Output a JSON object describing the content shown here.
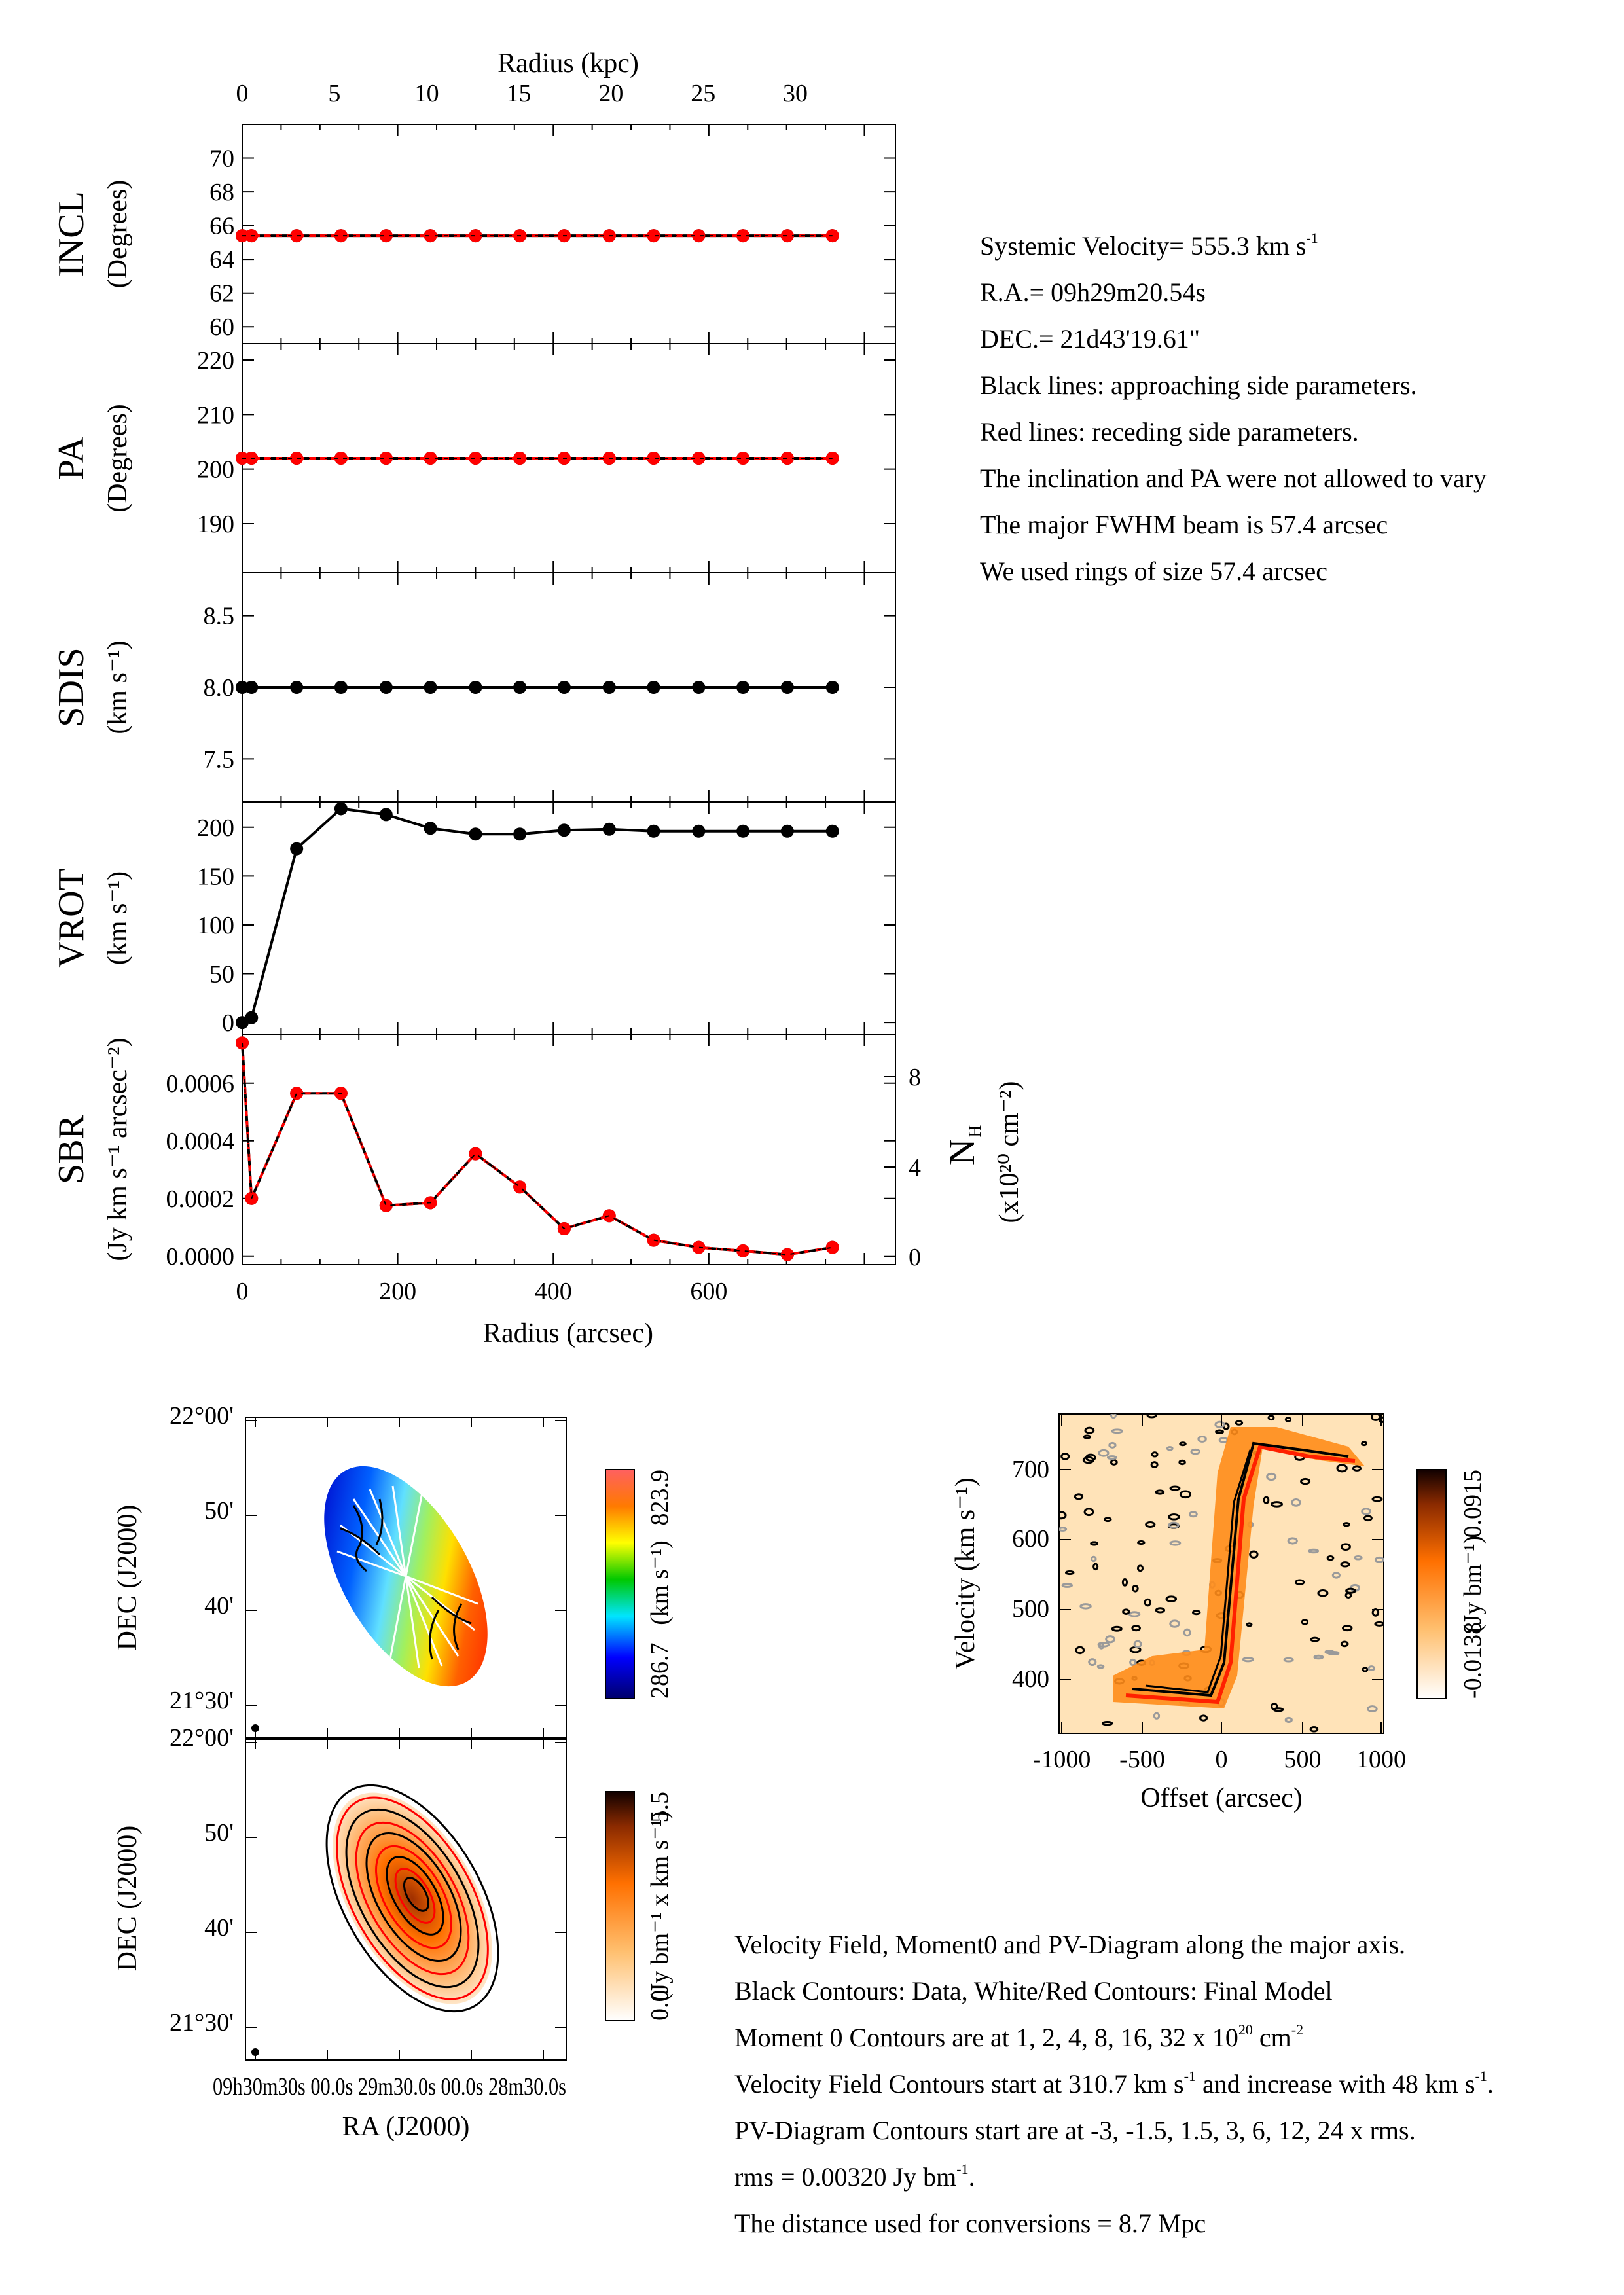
{
  "chart_data": [
    {
      "type": "line",
      "name": "INCL",
      "ylabel": "INCL",
      "yunit": "(Degrees)",
      "ylim": [
        59,
        72
      ],
      "yticks": [
        "60",
        "62",
        "64",
        "66",
        "68",
        "70"
      ],
      "x": [
        0,
        12,
        70,
        127,
        185,
        242,
        300,
        357,
        414,
        472,
        529,
        587,
        644,
        701,
        759
      ],
      "series": [
        {
          "name": "approaching",
          "color": "#000000",
          "values": [
            65.4,
            65.4,
            65.4,
            65.4,
            65.4,
            65.4,
            65.4,
            65.4,
            65.4,
            65.4,
            65.4,
            65.4,
            65.4,
            65.4,
            65.4
          ]
        },
        {
          "name": "receding",
          "color": "#ff0000",
          "values": [
            65.4,
            65.4,
            65.4,
            65.4,
            65.4,
            65.4,
            65.4,
            65.4,
            65.4,
            65.4,
            65.4,
            65.4,
            65.4,
            65.4,
            65.4
          ]
        }
      ]
    },
    {
      "type": "line",
      "name": "PA",
      "ylabel": "PA",
      "yunit": "(Degrees)",
      "ylim": [
        181,
        223
      ],
      "yticks": [
        "190",
        "200",
        "210",
        "220"
      ],
      "x": [
        0,
        12,
        70,
        127,
        185,
        242,
        300,
        357,
        414,
        472,
        529,
        587,
        644,
        701,
        759
      ],
      "series": [
        {
          "name": "approaching",
          "color": "#000000",
          "values": [
            202,
            202,
            202,
            202,
            202,
            202,
            202,
            202,
            202,
            202,
            202,
            202,
            202,
            202,
            202
          ]
        },
        {
          "name": "receding",
          "color": "#ff0000",
          "values": [
            202,
            202,
            202,
            202,
            202,
            202,
            202,
            202,
            202,
            202,
            202,
            202,
            202,
            202,
            202
          ]
        }
      ]
    },
    {
      "type": "line",
      "name": "SDIS",
      "ylabel": "SDIS",
      "yunit": "(km s⁻¹)",
      "ylim": [
        7.2,
        8.8
      ],
      "yticks": [
        "7.5",
        "8.0",
        "8.5"
      ],
      "x": [
        0,
        12,
        70,
        127,
        185,
        242,
        300,
        357,
        414,
        472,
        529,
        587,
        644,
        701,
        759
      ],
      "series": [
        {
          "name": "approaching",
          "color": "#000000",
          "values": [
            8.0,
            8.0,
            8.0,
            8.0,
            8.0,
            8.0,
            8.0,
            8.0,
            8.0,
            8.0,
            8.0,
            8.0,
            8.0,
            8.0,
            8.0
          ]
        }
      ]
    },
    {
      "type": "line",
      "name": "VROT",
      "ylabel": "VROT",
      "yunit": "(km s⁻¹)",
      "ylim": [
        -12,
        226
      ],
      "yticks": [
        "0",
        "50",
        "100",
        "150",
        "200"
      ],
      "x": [
        0,
        12,
        70,
        127,
        185,
        242,
        300,
        357,
        414,
        472,
        529,
        587,
        644,
        701,
        759
      ],
      "series": [
        {
          "name": "approaching",
          "color": "#000000",
          "values": [
            0,
            5,
            178,
            219,
            213,
            199,
            193,
            193,
            197,
            198,
            196,
            196,
            196,
            196,
            196
          ]
        }
      ]
    },
    {
      "type": "line",
      "name": "SBR",
      "ylabel": "SBR",
      "yunit": "(Jy km s⁻¹ arcsec⁻²)",
      "ylim": [
        -3e-05,
        0.00077
      ],
      "yticks": [
        "0.0000",
        "0.0002",
        "0.0004",
        "0.0006"
      ],
      "y2label": "N",
      "y2sub": "H",
      "y2unit": "(x10²⁰ cm⁻²)",
      "y2ticks": [
        "0",
        "4",
        "8"
      ],
      "xlabel": "Radius (arcsec)",
      "xticks": [
        "0",
        "200",
        "400",
        "600"
      ],
      "x": [
        0,
        12,
        70,
        127,
        185,
        242,
        300,
        357,
        414,
        472,
        529,
        587,
        644,
        701,
        759
      ],
      "series": [
        {
          "name": "approaching",
          "color": "#000000",
          "values": [
            0.00074,
            0.0002,
            0.000565,
            0.000565,
            0.000175,
            0.000185,
            0.000355,
            0.00024,
            9.5e-05,
            0.00014,
            5.5e-05,
            3e-05,
            1.8e-05,
            5e-06,
            3e-05
          ]
        },
        {
          "name": "receding",
          "color": "#ff0000",
          "values": [
            0.00074,
            0.0002,
            0.000565,
            0.000565,
            0.000175,
            0.000185,
            0.000355,
            0.00024,
            9.5e-05,
            0.00014,
            5.5e-05,
            3e-05,
            1.8e-05,
            5e-06,
            3e-05
          ]
        }
      ]
    }
  ],
  "top_axis": {
    "label": "Radius (kpc)",
    "ticks": [
      "0",
      "5",
      "10",
      "15",
      "20",
      "25",
      "30"
    ]
  },
  "info": {
    "lines": [
      "Systemic Velocity= 555.3 km s-1",
      "R.A.= 09h29m20.54s",
      "DEC.= 21d43'19.61\"",
      "Black lines: approaching side parameters.",
      "Red lines: receding side parameters.",
      "The inclination and PA were not allowed to vary",
      "The major FWHM beam is 57.4 arcsec",
      "We used rings of size 57.4 arcsec"
    ]
  },
  "maps": {
    "dec_label": "DEC (J2000)",
    "ra_label": "RA (J2000)",
    "dec_ticks": [
      "22°00'",
      "50'",
      "40'",
      "21°30'"
    ],
    "ra_ticks_text": "09h30m30s  00.0s  29m30.0s  00.0s  28m30.0s",
    "velfield": {
      "cbar_max": "823.9",
      "cbar_min": "286.7",
      "cbar_unit": "(km s⁻¹)"
    },
    "mom0": {
      "cbar_max": "5.5",
      "cbar_min": "0.0",
      "cbar_unit": "(Jy bm⁻¹ x km s⁻¹)"
    }
  },
  "pv": {
    "ylabel": "Velocity (km s⁻¹)",
    "xlabel": "Offset (arcsec)",
    "yticks": [
      "400",
      "500",
      "600",
      "700"
    ],
    "xticks": [
      "-1000",
      "-500",
      "0",
      "500",
      "1000"
    ],
    "cbar_max": "0.0915",
    "cbar_min": "-0.0138",
    "cbar_unit": "(Jy bm⁻¹)"
  },
  "notes": {
    "lines": [
      "Velocity Field, Moment0 and PV-Diagram along the major axis.",
      "Black Contours: Data, White/Red Contours: Final Model",
      "Moment 0 Contours are at 1, 2, 4, 8, 16, 32 x 1020 cm-2",
      "Velocity Field Contours start at 310.7 km s-1 and increase with 48 km s-1.",
      "PV-Diagram Contours start are at -3, -1.5, 1.5, 3, 6, 12, 24 x rms.",
      "rms = 0.00320 Jy bm-1.",
      "The distance used for conversions = 8.7 Mpc"
    ]
  }
}
